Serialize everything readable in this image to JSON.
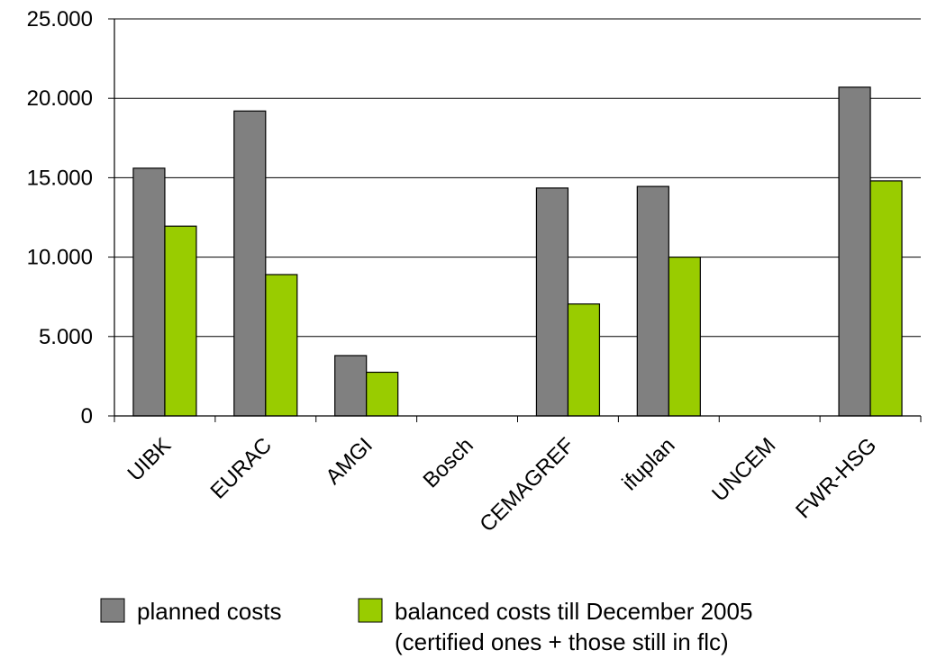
{
  "chart_data": {
    "type": "bar",
    "title": "",
    "xlabel": "",
    "ylabel": "",
    "categories": [
      "UIBK",
      "EURAC",
      "AMGI",
      "Bosch",
      "CEMAGREF",
      "ifuplan",
      "UNCEM",
      "FWR-HSG"
    ],
    "series": [
      {
        "name": "planned costs",
        "color": "#808080",
        "values": [
          15600,
          19200,
          3800,
          0,
          14350,
          14450,
          0,
          20700
        ]
      },
      {
        "name": "balanced costs till December 2005 (certified ones + those still in flc)",
        "color": "#99cc00",
        "values": [
          11950,
          8900,
          2750,
          0,
          7050,
          10000,
          0,
          14800
        ]
      }
    ],
    "ylim": [
      0,
      25000
    ],
    "y_ticks": [
      0,
      5000,
      10000,
      15000,
      20000,
      25000
    ],
    "y_tick_labels": [
      "0",
      "5.000",
      "10.000",
      "15.000",
      "20.000",
      "25.000"
    ],
    "grid": true,
    "legend_position": "bottom"
  },
  "legend": {
    "item1": "planned costs",
    "item2_line1": "balanced costs till December 2005",
    "item2_line2": "(certified ones + those still in flc)"
  }
}
